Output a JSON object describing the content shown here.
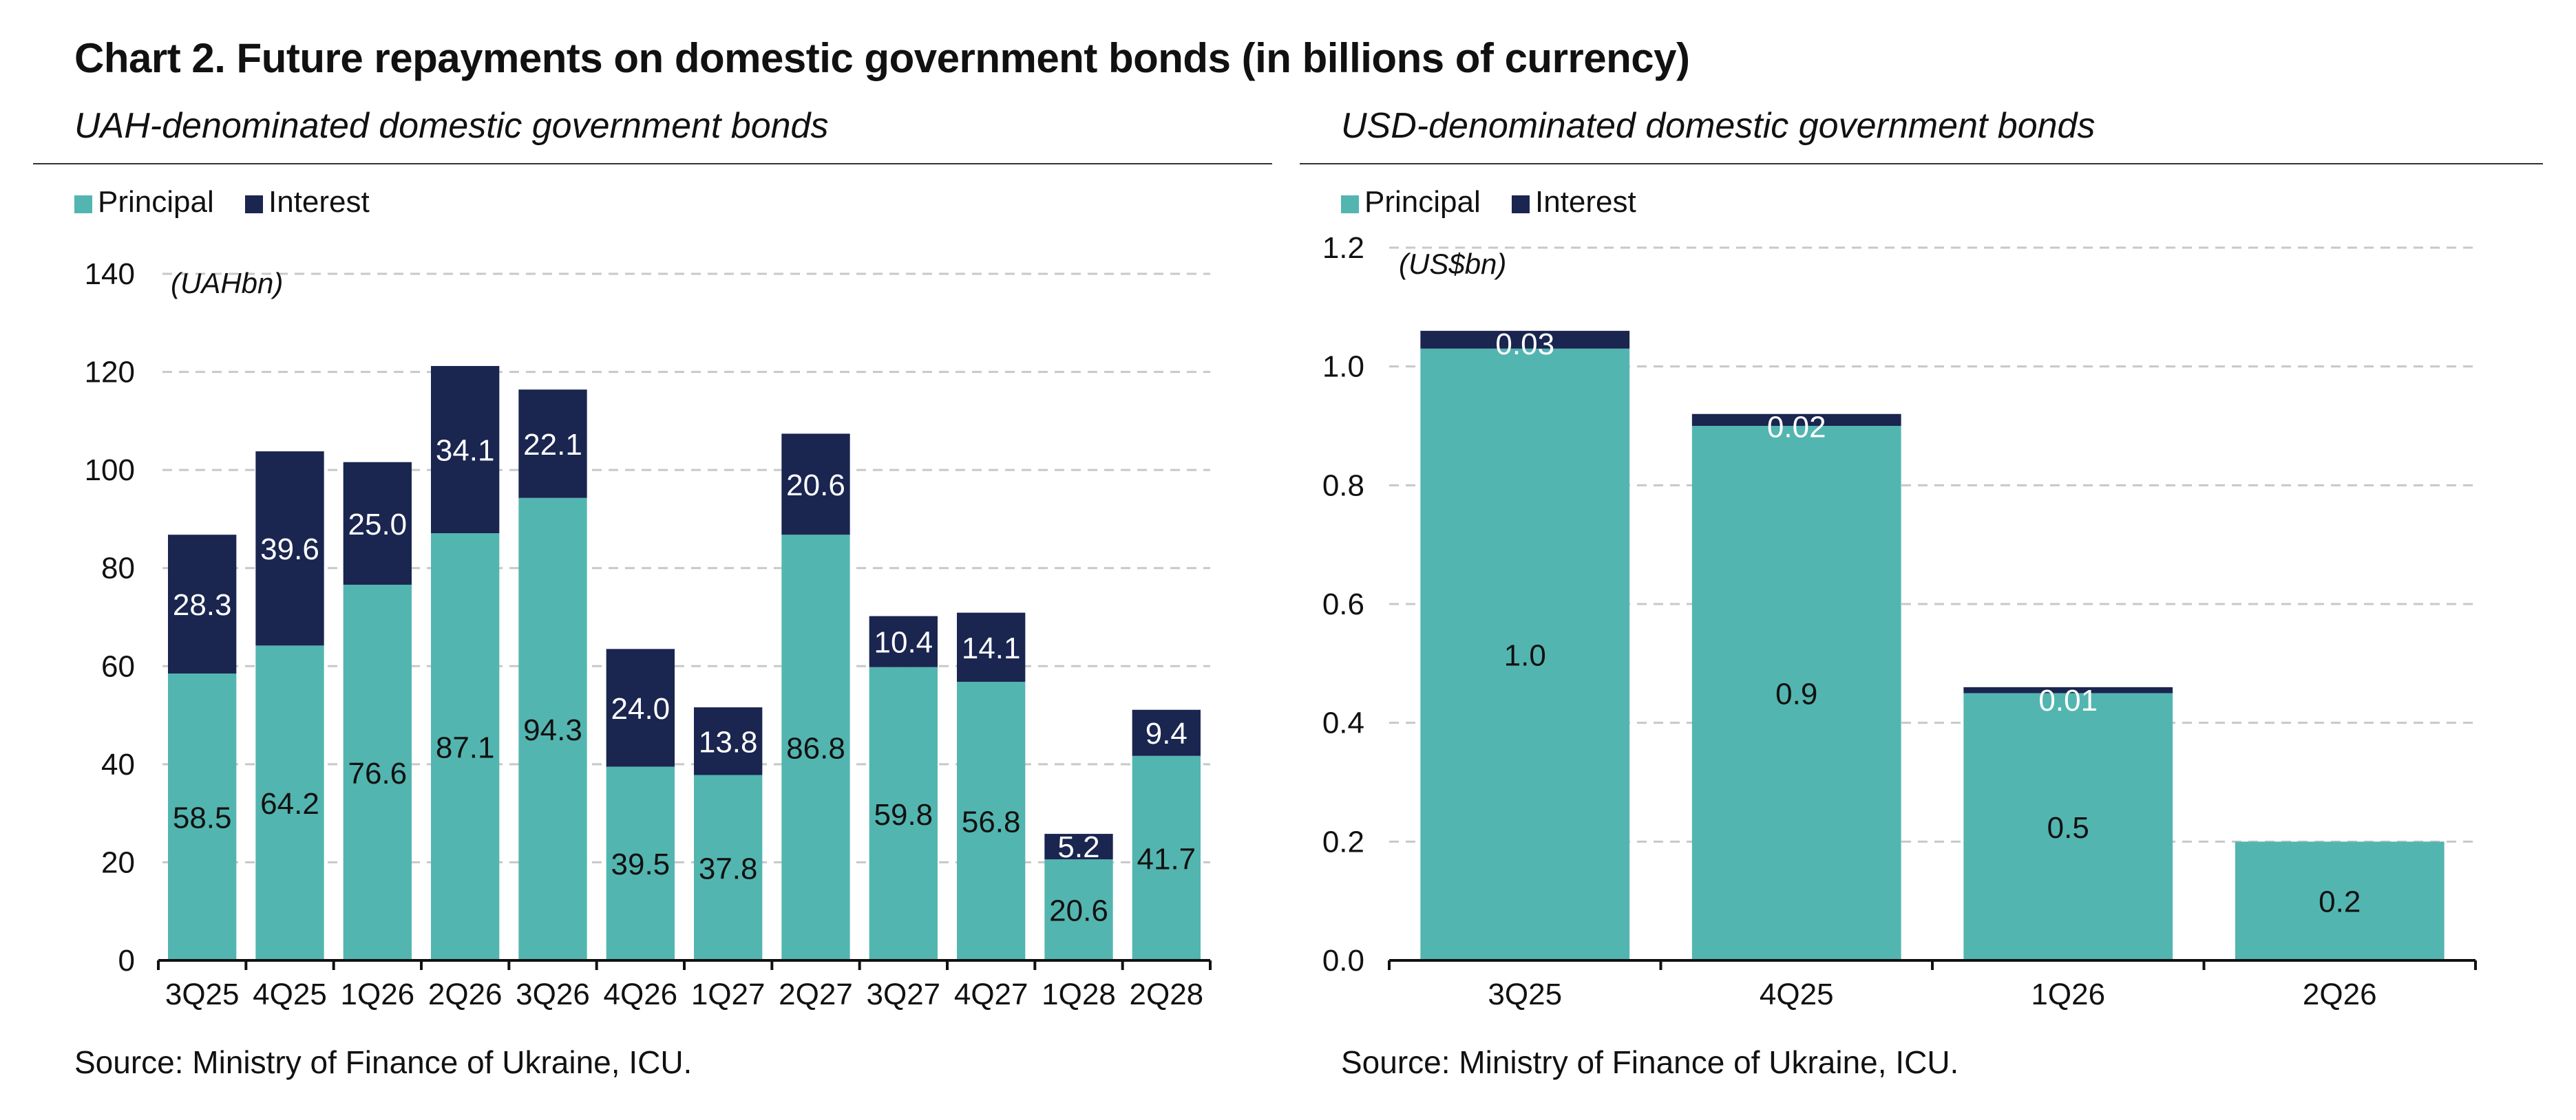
{
  "title": "Chart 2. Future repayments on domestic government bonds (in billions of currency)",
  "colors": {
    "principal": "#53b5b0",
    "interest": "#1a2550",
    "axis": "#111111",
    "grid": "#c8c8c8"
  },
  "chart_data": [
    {
      "type": "bar",
      "stacked": true,
      "subtitle": "UAH-denominated domestic government bonds",
      "unit_label": "(UAHbn)",
      "categories": [
        "3Q25",
        "4Q25",
        "1Q26",
        "2Q26",
        "3Q26",
        "4Q26",
        "1Q27",
        "2Q27",
        "3Q27",
        "4Q27",
        "1Q28",
        "2Q28"
      ],
      "series": [
        {
          "name": "Principal",
          "values": [
            58.5,
            64.2,
            76.6,
            87.1,
            94.3,
            39.5,
            37.8,
            86.8,
            59.8,
            56.8,
            20.6,
            41.7
          ],
          "labels": [
            "58.5",
            "64.2",
            "76.6",
            "87.1",
            "94.3",
            "39.5",
            "37.8",
            "86.8",
            "59.8",
            "56.8",
            "20.6",
            "41.7"
          ]
        },
        {
          "name": "Interest",
          "values": [
            28.3,
            39.6,
            25.0,
            34.1,
            22.1,
            24.0,
            13.8,
            20.6,
            10.4,
            14.1,
            5.2,
            9.4
          ],
          "labels": [
            "28.3",
            "39.6",
            "25.0",
            "34.1",
            "22.1",
            "24.0",
            "13.8",
            "20.6",
            "10.4",
            "14.1",
            "5.2",
            "9.4"
          ]
        }
      ],
      "ylim": [
        0,
        140
      ],
      "yticks": [
        0,
        20,
        40,
        60,
        80,
        100,
        120,
        140
      ],
      "ytick_labels": [
        "0",
        "20",
        "40",
        "60",
        "80",
        "100",
        "120",
        "140"
      ],
      "grid": true,
      "legend": "top-left",
      "source": "Source: Ministry of Finance of Ukraine, ICU."
    },
    {
      "type": "bar",
      "stacked": true,
      "subtitle": "USD-denominated domestic government bonds",
      "unit_label": "(US$bn)",
      "categories": [
        "3Q25",
        "4Q25",
        "1Q26",
        "2Q26"
      ],
      "series": [
        {
          "name": "Principal",
          "values": [
            1.03,
            0.9,
            0.45,
            0.2
          ],
          "labels": [
            "1.0",
            "0.9",
            "0.5",
            "0.2"
          ]
        },
        {
          "name": "Interest",
          "values": [
            0.03,
            0.02,
            0.01,
            0
          ],
          "labels": [
            "0.03",
            "0.02",
            "0.01",
            ""
          ]
        }
      ],
      "ylim": [
        0,
        1.2
      ],
      "yticks": [
        0,
        0.2,
        0.4,
        0.6,
        0.8,
        1.0,
        1.2
      ],
      "ytick_labels": [
        "0.0",
        "0.2",
        "0.4",
        "0.6",
        "0.8",
        "1.0",
        "1.2"
      ],
      "grid": true,
      "legend": "top-left",
      "source": "Source: Ministry of Finance of Ukraine, ICU."
    }
  ]
}
